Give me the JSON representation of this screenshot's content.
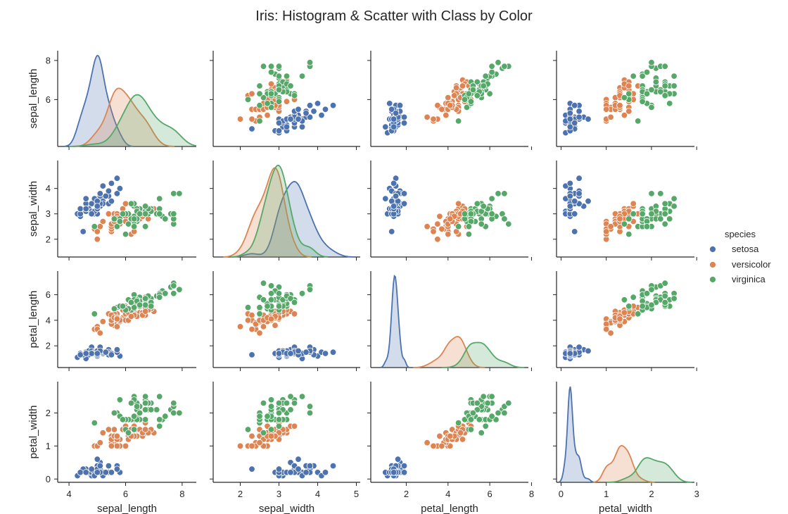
{
  "figure": {
    "title": "Iris: Histogram & Scatter with Class by Color"
  },
  "legend": {
    "title": "species",
    "placement": "right",
    "entries": [
      {
        "label": "setosa",
        "color": "#4c72b0"
      },
      {
        "label": "versicolor",
        "color": "#dd8452"
      },
      {
        "label": "virginica",
        "color": "#55a868"
      }
    ]
  },
  "chart_data": {
    "type": "scatter",
    "layout": "pairplot",
    "diagonal": "kde",
    "title": "Iris: Histogram & Scatter with Class by Color",
    "grid": false,
    "variables": [
      "sepal_length",
      "sepal_width",
      "petal_length",
      "petal_width"
    ],
    "axes": {
      "sepal_length": {
        "lim": [
          3.6,
          8.5
        ],
        "ticks": [
          4,
          6,
          8
        ],
        "row_ticks": [
          6,
          8
        ]
      },
      "sepal_width": {
        "lim": [
          1.3,
          5.1
        ],
        "ticks": [
          2,
          3,
          4,
          5
        ],
        "row_ticks": [
          2,
          3,
          4
        ]
      },
      "petal_length": {
        "lim": [
          0.3,
          7.85
        ],
        "ticks": [
          2,
          4,
          6,
          8
        ],
        "row_ticks": [
          2,
          4,
          6
        ]
      },
      "petal_width": {
        "lim": [
          -0.1,
          2.95
        ],
        "ticks": [
          0,
          1,
          2,
          3
        ],
        "row_ticks": [
          0,
          1,
          2
        ]
      }
    },
    "series_order": [
      "setosa",
      "versicolor",
      "virginica"
    ],
    "series": {
      "setosa": {
        "color": "#4c72b0",
        "sepal_length": [
          5.1,
          4.9,
          4.7,
          4.6,
          5.0,
          5.4,
          4.6,
          5.0,
          4.4,
          4.9,
          5.4,
          4.8,
          4.8,
          4.3,
          5.8,
          5.7,
          5.4,
          5.1,
          5.7,
          5.1,
          5.4,
          5.1,
          4.6,
          5.1,
          4.8,
          5.0,
          5.0,
          5.2,
          5.2,
          4.7,
          4.8,
          5.4,
          5.2,
          5.5,
          4.9,
          5.0,
          5.5,
          4.9,
          4.4,
          5.1,
          5.0,
          4.5,
          4.4,
          5.0,
          5.1,
          4.8,
          5.1,
          4.6,
          5.3,
          5.0
        ],
        "sepal_width": [
          3.5,
          3.0,
          3.2,
          3.1,
          3.6,
          3.9,
          3.4,
          3.4,
          2.9,
          3.1,
          3.7,
          3.4,
          3.0,
          3.0,
          4.0,
          4.4,
          3.9,
          3.5,
          3.8,
          3.8,
          3.4,
          3.7,
          3.6,
          3.3,
          3.4,
          3.0,
          3.4,
          3.5,
          3.4,
          3.2,
          3.1,
          3.4,
          4.1,
          4.2,
          3.1,
          3.2,
          3.5,
          3.6,
          3.0,
          3.4,
          3.5,
          2.3,
          3.2,
          3.5,
          3.8,
          3.0,
          3.8,
          3.2,
          3.7,
          3.3
        ],
        "petal_length": [
          1.4,
          1.4,
          1.3,
          1.5,
          1.4,
          1.7,
          1.4,
          1.5,
          1.4,
          1.5,
          1.5,
          1.6,
          1.4,
          1.1,
          1.2,
          1.5,
          1.3,
          1.4,
          1.7,
          1.5,
          1.7,
          1.5,
          1.0,
          1.7,
          1.9,
          1.6,
          1.6,
          1.5,
          1.4,
          1.6,
          1.6,
          1.5,
          1.5,
          1.4,
          1.5,
          1.2,
          1.3,
          1.4,
          1.3,
          1.5,
          1.3,
          1.3,
          1.3,
          1.6,
          1.9,
          1.4,
          1.6,
          1.4,
          1.5,
          1.4
        ],
        "petal_width": [
          0.2,
          0.2,
          0.2,
          0.2,
          0.2,
          0.4,
          0.3,
          0.2,
          0.2,
          0.1,
          0.2,
          0.2,
          0.1,
          0.1,
          0.2,
          0.4,
          0.4,
          0.3,
          0.3,
          0.3,
          0.2,
          0.4,
          0.2,
          0.5,
          0.2,
          0.2,
          0.4,
          0.2,
          0.2,
          0.2,
          0.2,
          0.4,
          0.1,
          0.2,
          0.2,
          0.2,
          0.2,
          0.1,
          0.2,
          0.2,
          0.3,
          0.3,
          0.2,
          0.6,
          0.4,
          0.3,
          0.2,
          0.2,
          0.2,
          0.2
        ]
      },
      "versicolor": {
        "color": "#dd8452",
        "sepal_length": [
          7.0,
          6.4,
          6.9,
          5.5,
          6.5,
          5.7,
          6.3,
          4.9,
          6.6,
          5.2,
          5.0,
          5.9,
          6.0,
          6.1,
          5.6,
          6.7,
          5.6,
          5.8,
          6.2,
          5.6,
          5.9,
          6.1,
          6.3,
          6.1,
          6.4,
          6.6,
          6.8,
          6.7,
          6.0,
          5.7,
          5.5,
          5.5,
          5.8,
          6.0,
          5.4,
          6.0,
          6.7,
          6.3,
          5.6,
          5.5,
          5.5,
          6.1,
          5.8,
          5.0,
          5.6,
          5.7,
          5.7,
          6.2,
          5.1,
          5.7
        ],
        "sepal_width": [
          3.2,
          3.2,
          3.1,
          2.3,
          2.8,
          2.8,
          3.3,
          2.4,
          2.9,
          2.7,
          2.0,
          3.0,
          2.2,
          2.9,
          2.9,
          3.1,
          3.0,
          2.7,
          2.2,
          2.5,
          3.2,
          2.8,
          2.5,
          2.8,
          2.9,
          3.0,
          2.8,
          3.0,
          2.9,
          2.6,
          2.4,
          2.4,
          2.7,
          2.7,
          3.0,
          3.4,
          3.1,
          2.3,
          3.0,
          2.5,
          2.6,
          3.0,
          2.6,
          2.3,
          2.7,
          3.0,
          2.9,
          2.9,
          2.5,
          2.8
        ],
        "petal_length": [
          4.7,
          4.5,
          4.9,
          4.0,
          4.6,
          4.5,
          4.7,
          3.3,
          4.6,
          3.9,
          3.5,
          4.2,
          4.0,
          4.7,
          3.6,
          4.4,
          4.5,
          4.1,
          4.5,
          3.9,
          4.8,
          4.0,
          4.9,
          4.7,
          4.3,
          4.4,
          4.8,
          5.0,
          4.5,
          3.5,
          3.8,
          3.7,
          3.9,
          5.1,
          4.5,
          4.5,
          4.7,
          4.4,
          4.1,
          4.0,
          4.4,
          4.6,
          4.0,
          3.3,
          4.2,
          4.2,
          4.2,
          4.3,
          3.0,
          4.1
        ],
        "petal_width": [
          1.4,
          1.5,
          1.5,
          1.3,
          1.5,
          1.3,
          1.6,
          1.0,
          1.3,
          1.4,
          1.0,
          1.5,
          1.0,
          1.4,
          1.3,
          1.4,
          1.5,
          1.0,
          1.5,
          1.1,
          1.8,
          1.3,
          1.5,
          1.2,
          1.3,
          1.4,
          1.4,
          1.7,
          1.5,
          1.0,
          1.1,
          1.0,
          1.2,
          1.6,
          1.5,
          1.6,
          1.5,
          1.3,
          1.3,
          1.3,
          1.2,
          1.4,
          1.2,
          1.0,
          1.3,
          1.2,
          1.3,
          1.3,
          1.1,
          1.3
        ]
      },
      "virginica": {
        "color": "#55a868",
        "sepal_length": [
          6.3,
          5.8,
          7.1,
          6.3,
          6.5,
          7.6,
          4.9,
          7.3,
          6.7,
          7.2,
          6.5,
          6.4,
          6.8,
          5.7,
          5.8,
          6.4,
          6.5,
          7.7,
          7.7,
          6.0,
          6.9,
          5.6,
          7.7,
          6.3,
          6.7,
          7.2,
          6.2,
          6.1,
          6.4,
          7.2,
          7.4,
          7.9,
          6.4,
          6.3,
          6.1,
          7.7,
          6.3,
          6.4,
          6.0,
          6.9,
          6.7,
          6.9,
          5.8,
          6.8,
          6.7,
          6.7,
          6.3,
          6.5,
          6.2,
          5.9
        ],
        "sepal_width": [
          3.3,
          2.7,
          3.0,
          2.9,
          3.0,
          3.0,
          2.5,
          2.9,
          2.5,
          3.6,
          3.2,
          2.7,
          3.0,
          2.5,
          2.8,
          3.2,
          3.0,
          3.8,
          2.6,
          2.2,
          3.2,
          2.8,
          2.8,
          2.7,
          3.3,
          3.2,
          2.8,
          3.0,
          2.8,
          3.0,
          2.8,
          3.8,
          2.8,
          2.8,
          2.6,
          3.0,
          3.4,
          3.1,
          3.0,
          3.1,
          3.1,
          3.1,
          2.7,
          3.2,
          3.3,
          3.0,
          2.5,
          3.0,
          3.4,
          3.0
        ],
        "petal_length": [
          6.0,
          5.1,
          5.9,
          5.6,
          5.8,
          6.6,
          4.5,
          6.3,
          5.8,
          6.1,
          5.1,
          5.3,
          5.5,
          5.0,
          5.1,
          5.3,
          5.5,
          6.7,
          6.9,
          5.0,
          5.7,
          4.9,
          6.7,
          4.9,
          5.7,
          6.0,
          4.8,
          4.9,
          5.6,
          5.8,
          6.1,
          6.4,
          5.6,
          5.1,
          5.6,
          6.1,
          5.6,
          5.5,
          4.8,
          5.4,
          5.6,
          5.1,
          5.1,
          5.9,
          5.7,
          5.2,
          5.0,
          5.2,
          5.4,
          5.1
        ],
        "petal_width": [
          2.5,
          1.9,
          2.1,
          1.8,
          2.2,
          2.1,
          1.7,
          1.8,
          1.8,
          2.5,
          2.0,
          1.9,
          2.1,
          2.0,
          2.4,
          2.3,
          1.8,
          2.2,
          2.3,
          1.5,
          2.3,
          2.0,
          2.0,
          1.8,
          2.1,
          1.8,
          1.8,
          1.8,
          2.1,
          1.6,
          1.9,
          2.0,
          2.2,
          1.5,
          1.4,
          2.3,
          2.4,
          1.8,
          1.8,
          2.1,
          2.4,
          2.3,
          1.9,
          2.3,
          2.5,
          2.3,
          1.9,
          2.0,
          2.3,
          1.8
        ]
      }
    }
  }
}
